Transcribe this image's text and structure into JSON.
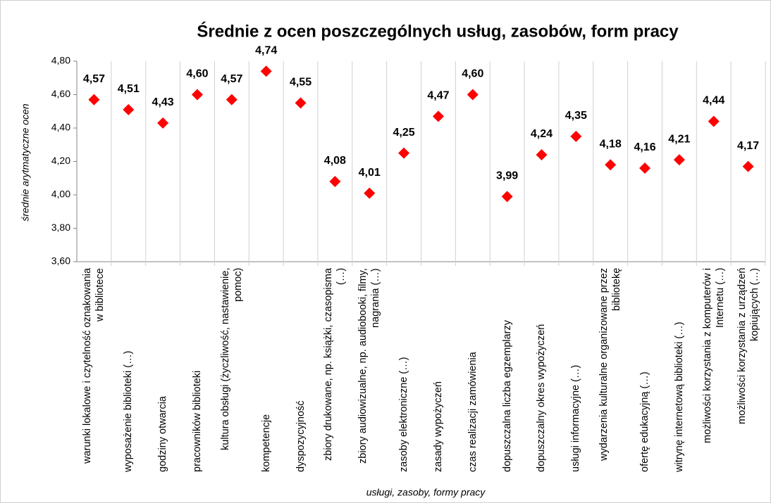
{
  "chart_data": {
    "type": "scatter",
    "title": "Średnie z ocen poszczególnych usług, zasobów, form pracy",
    "y_label": "średnie arytmatyczne ocen",
    "x_label": "usługi, zasoby, formy pracy",
    "categories": [
      "warunki lokalowe i czytelność oznakowania w bibliotece",
      "wyposażenie biblioteki (…)",
      "godziny otwarcia",
      "pracowników biblioteki",
      "kultura obsługi (życzliwość, nastawienie, pomoc)",
      "kompetencje",
      "dyspozycyjność",
      "zbiory drukowane, np. książki, czasopisma (…)",
      "zbiory audiowizualne, np. audiobooki, filmy, nagrania (…)",
      "zasoby elektroniczne (…)",
      "zasady wypożyczeń",
      "czas realizacji zamówienia",
      "dopuszczalna liczba egzemplarzy",
      "dopuszczalny okres wypożyczeń",
      "usługi informacyjne (…)",
      "wydarzenia kulturalne organizowane przez bibliotekę",
      "ofertę edukacyjną (…)",
      "witrynę internetową biblioteki (…)",
      "możliwości korzystania z komputerów i Internetu (…)",
      "możliwości korzystania z urządzeń kopiujących (…)"
    ],
    "values": [
      4.57,
      4.51,
      4.43,
      4.6,
      4.57,
      4.74,
      4.55,
      4.08,
      4.01,
      4.25,
      4.47,
      4.6,
      3.99,
      4.24,
      4.35,
      4.18,
      4.16,
      4.21,
      4.44,
      4.17
    ],
    "value_labels": [
      "4,57",
      "4,51",
      "4,43",
      "4,60",
      "4,57",
      "4,74",
      "4,55",
      "4,08",
      "4,01",
      "4,25",
      "4,47",
      "4,60",
      "3,99",
      "4,24",
      "4,35",
      "4,18",
      "4,16",
      "4,21",
      "4,44",
      "4,17"
    ],
    "color": "#ff0000",
    "ylim": [
      3.6,
      4.8
    ],
    "yticks": [
      {
        "value": 3.6,
        "label": "3,60"
      },
      {
        "value": 3.8,
        "label": "3,80"
      },
      {
        "value": 4.0,
        "label": "4,00"
      },
      {
        "value": 4.2,
        "label": "4,20"
      },
      {
        "value": 4.4,
        "label": "4,40"
      },
      {
        "value": 4.6,
        "label": "4,60"
      },
      {
        "value": 4.8,
        "label": "4,80"
      }
    ]
  }
}
